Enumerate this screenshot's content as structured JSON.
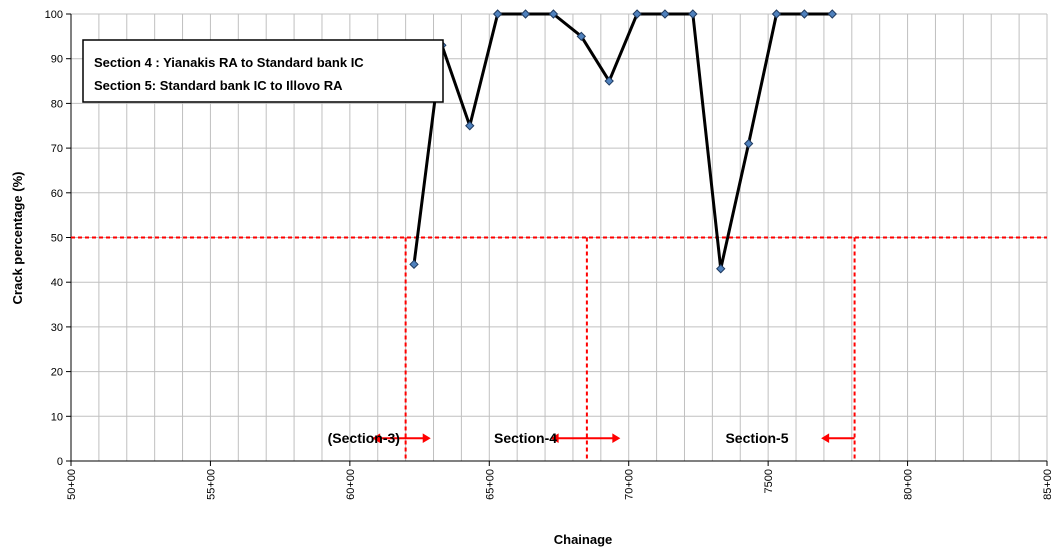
{
  "chart_data": {
    "type": "line",
    "title": "",
    "xlabel": "Chainage",
    "ylabel": "Crack percentage (%)",
    "x_index_range": [
      0,
      35
    ],
    "ylim": [
      0,
      100
    ],
    "y_ticks": [
      0,
      10,
      20,
      30,
      40,
      50,
      60,
      70,
      80,
      90,
      100
    ],
    "x_tick_labels": [
      {
        "index": 0,
        "label": "50+00"
      },
      {
        "index": 5,
        "label": "55+00"
      },
      {
        "index": 10,
        "label": "60+00"
      },
      {
        "index": 15,
        "label": "65+00"
      },
      {
        "index": 20,
        "label": "70+00"
      },
      {
        "index": 25,
        "label": "7500"
      },
      {
        "index": 30,
        "label": "80+00"
      },
      {
        "index": 35,
        "label": "85+00"
      }
    ],
    "grid": true,
    "series": [
      {
        "name": "",
        "color": "#000000",
        "marker_color": "#4f81bd",
        "points": [
          {
            "x": 12.3,
            "y": 44
          },
          {
            "x": 13.3,
            "y": 93
          },
          {
            "x": 14.3,
            "y": 75
          },
          {
            "x": 15.3,
            "y": 100
          },
          {
            "x": 16.3,
            "y": 100
          },
          {
            "x": 17.3,
            "y": 100
          },
          {
            "x": 18.3,
            "y": 95
          },
          {
            "x": 19.3,
            "y": 85
          },
          {
            "x": 20.3,
            "y": 100
          },
          {
            "x": 21.3,
            "y": 100
          },
          {
            "x": 22.3,
            "y": 100
          },
          {
            "x": 23.3,
            "y": 43
          },
          {
            "x": 24.3,
            "y": 71
          },
          {
            "x": 25.3,
            "y": 100
          },
          {
            "x": 26.3,
            "y": 100
          },
          {
            "x": 27.3,
            "y": 100
          }
        ]
      }
    ],
    "threshold": {
      "y": 50,
      "color": "#ff0000"
    },
    "section_dividers": [
      {
        "x": 12.0
      },
      {
        "x": 18.5
      },
      {
        "x": 28.1
      }
    ],
    "legend_box": {
      "lines": [
        "Section 4 : Yianakis RA to Standard bank  IC",
        "Section 5: Standard bank IC to Illovo RA"
      ]
    },
    "section_labels": [
      {
        "text": "(Section-3)",
        "x": 10.5
      },
      {
        "text": "Section-4",
        "x": 16.3
      },
      {
        "text": "Section-5",
        "x": 24.6
      }
    ],
    "arrows": [
      {
        "x1": 10.8,
        "x2": 12.9,
        "y": 5.1,
        "heads": "both"
      },
      {
        "x1": 17.2,
        "x2": 19.7,
        "y": 5.1,
        "heads": "both"
      },
      {
        "x1": 26.9,
        "x2": 28.1,
        "y": 5.1,
        "heads": "left"
      }
    ],
    "colors": {
      "line": "#000000",
      "marker": "#4f81bd",
      "threshold": "#ff0000",
      "grid": "#c0c0c0"
    }
  }
}
